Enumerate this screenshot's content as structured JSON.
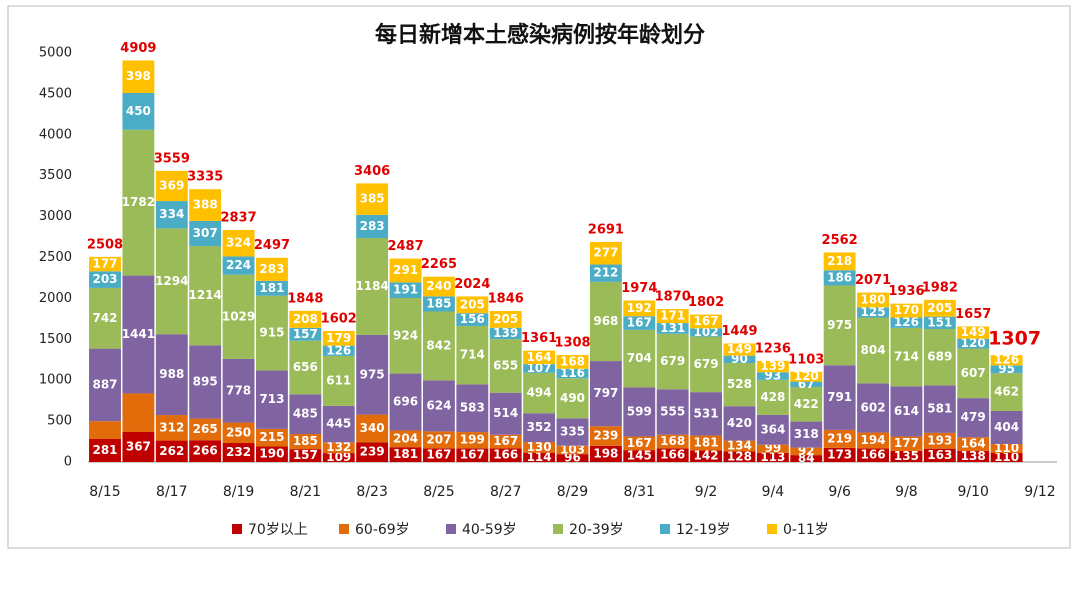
{
  "chart_data": {
    "type": "stacked-bar",
    "title": "每日新增本土感染病例按年龄划分",
    "categories": [
      "8/15",
      null,
      "8/17",
      null,
      "8/19",
      null,
      "8/21",
      null,
      "8/23",
      null,
      "8/25",
      null,
      "8/27",
      null,
      "8/29",
      null,
      "8/31",
      null,
      "9/2",
      null,
      "9/4",
      null,
      "9/6",
      null,
      "9/8",
      null,
      "9/10",
      null,
      "9/12"
    ],
    "series": [
      {
        "name": "70岁以上",
        "color": "#c00000",
        "values": [
          281,
          367,
          262,
          266,
          232,
          190,
          157,
          109,
          239,
          181,
          167,
          167,
          166,
          114,
          96,
          198,
          145,
          166,
          142,
          128,
          113,
          84,
          173,
          166,
          135,
          163,
          138,
          110,
          null
        ]
      },
      {
        "name": "60-69岁",
        "color": "#e36c0a",
        "values": [
          218,
          471,
          312,
          265,
          250,
          215,
          185,
          132,
          340,
          204,
          207,
          199,
          167,
          130,
          103,
          239,
          167,
          168,
          181,
          134,
          99,
          92,
          219,
          194,
          177,
          193,
          164,
          110,
          null
        ],
        "value_labels": [
          null,
          null,
          "312",
          "265",
          "250",
          "215",
          "185",
          "132",
          "340",
          "204",
          "207",
          "199",
          "167",
          "130",
          "103",
          "239",
          "167",
          "168",
          "181",
          "134",
          "99",
          "92",
          "219",
          "194",
          "177",
          "193",
          "164",
          "110",
          null
        ]
      },
      {
        "name": "40-59岁",
        "color": "#8064a2",
        "values": [
          887,
          1441,
          988,
          895,
          778,
          713,
          485,
          445,
          975,
          696,
          624,
          583,
          514,
          352,
          335,
          797,
          599,
          555,
          531,
          420,
          364,
          318,
          791,
          602,
          614,
          581,
          479,
          404,
          null
        ]
      },
      {
        "name": "20-39岁",
        "color": "#9bbb59",
        "values": [
          742,
          1782,
          1294,
          1214,
          1029,
          915,
          656,
          611,
          1184,
          924,
          842,
          714,
          655,
          494,
          490,
          968,
          704,
          679,
          679,
          528,
          428,
          422,
          975,
          804,
          714,
          689,
          607,
          462,
          null
        ]
      },
      {
        "name": "12-19岁",
        "color": "#4bacc6",
        "values": [
          203,
          450,
          334,
          307,
          224,
          181,
          157,
          126,
          283,
          191,
          185,
          156,
          139,
          107,
          116,
          212,
          167,
          131,
          102,
          90,
          93,
          67,
          186,
          125,
          126,
          151,
          120,
          95,
          null
        ]
      },
      {
        "name": "0-11岁",
        "color": "#ffc000",
        "values": [
          177,
          398,
          369,
          388,
          324,
          283,
          208,
          179,
          385,
          291,
          240,
          205,
          205,
          164,
          168,
          277,
          192,
          171,
          167,
          149,
          139,
          120,
          218,
          180,
          170,
          205,
          149,
          126,
          null
        ]
      }
    ],
    "totals": [
      2508,
      4909,
      3559,
      3335,
      2837,
      2497,
      1848,
      1602,
      3406,
      2487,
      2265,
      2024,
      1846,
      1361,
      1308,
      2691,
      1974,
      1870,
      1802,
      1449,
      1236,
      1103,
      2562,
      2071,
      1936,
      1982,
      1657,
      1307,
      null
    ],
    "ylim": [
      0,
      5000
    ],
    "yticks": [
      0,
      500,
      1000,
      1500,
      2000,
      2500,
      3000,
      3500,
      4000,
      4500,
      5000
    ],
    "grid": false,
    "legend": "bottom"
  }
}
